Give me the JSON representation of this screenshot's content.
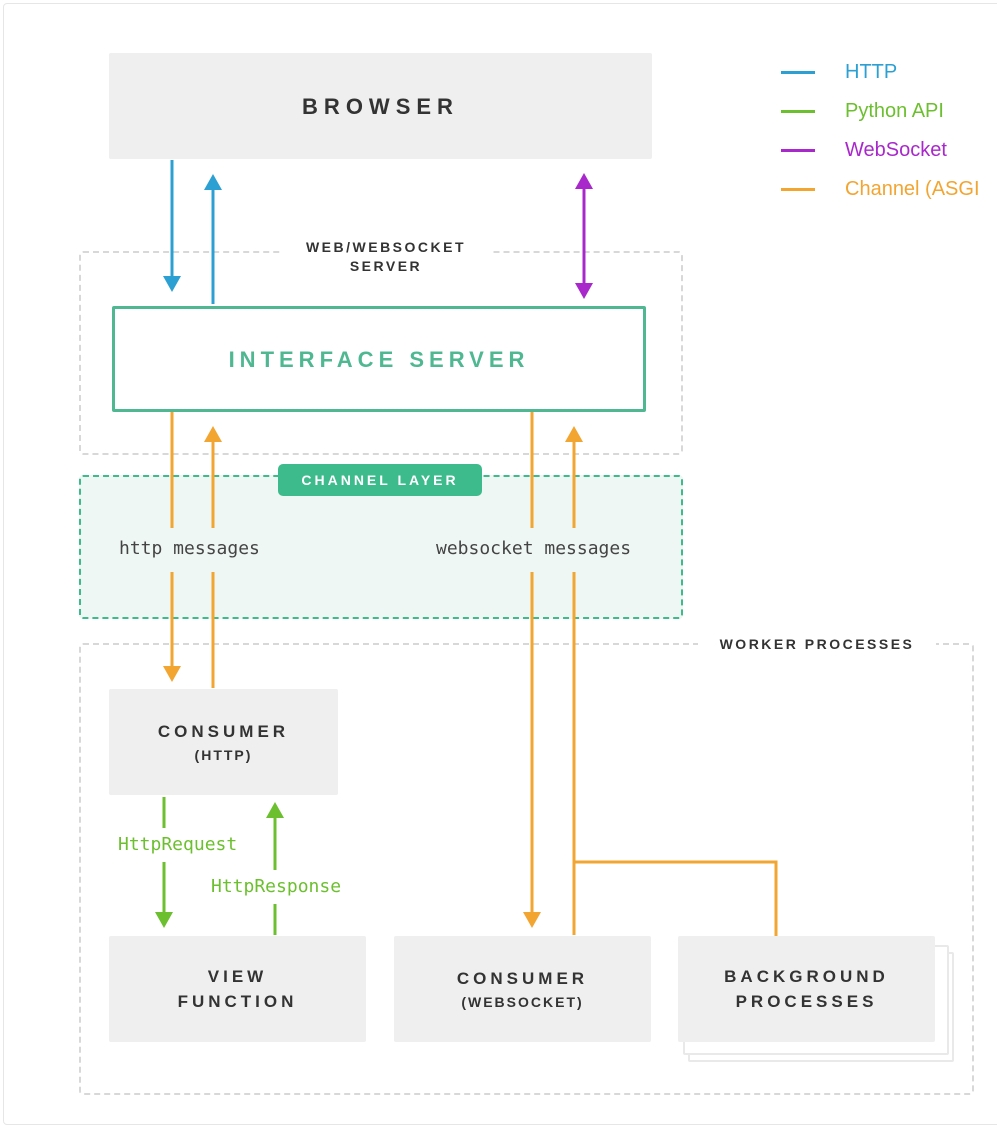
{
  "colors": {
    "http": "#2ca0d3",
    "python_api": "#6cbf2e",
    "websocket": "#a928cc",
    "channel": "#f2a531",
    "interface_green": "#4fb893",
    "channel_layer_green": "#3dbb8c"
  },
  "legend": [
    {
      "label": "HTTP",
      "color": "#2ca0d3"
    },
    {
      "label": "Python API",
      "color": "#6cbf2e"
    },
    {
      "label": "WebSocket",
      "color": "#a928cc"
    },
    {
      "label": "Channel (ASGI",
      "color": "#f2a531"
    }
  ],
  "nodes": {
    "browser": "BROWSER",
    "interface_server": "INTERFACE SERVER",
    "consumer_http": {
      "title": "CONSUMER",
      "sub": "(HTTP)"
    },
    "view_function": {
      "line1": "VIEW",
      "line2": "FUNCTION"
    },
    "consumer_websocket": {
      "title": "CONSUMER",
      "sub": "(WEBSOCKET)"
    },
    "background_processes": {
      "line1": "BACKGROUND",
      "line2": "PROCESSES"
    }
  },
  "regions": {
    "web_server": {
      "line1": "WEB/WEBSOCKET",
      "line2": "SERVER"
    },
    "channel_layer": "CHANNEL LAYER",
    "worker_processes": "WORKER PROCESSES"
  },
  "edge_labels": {
    "http_messages": "http messages",
    "websocket_messages": "websocket messages",
    "http_request": "HttpRequest",
    "http_response": "HttpResponse"
  }
}
